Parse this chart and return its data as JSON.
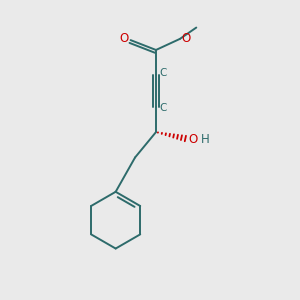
{
  "background_color": "#eaeaea",
  "bond_color": "#2d6b6b",
  "oxygen_color": "#cc0000",
  "line_width": 1.4,
  "figsize": [
    3.0,
    3.0
  ],
  "dpi": 100,
  "xlim": [
    0,
    10
  ],
  "ylim": [
    0,
    10
  ]
}
